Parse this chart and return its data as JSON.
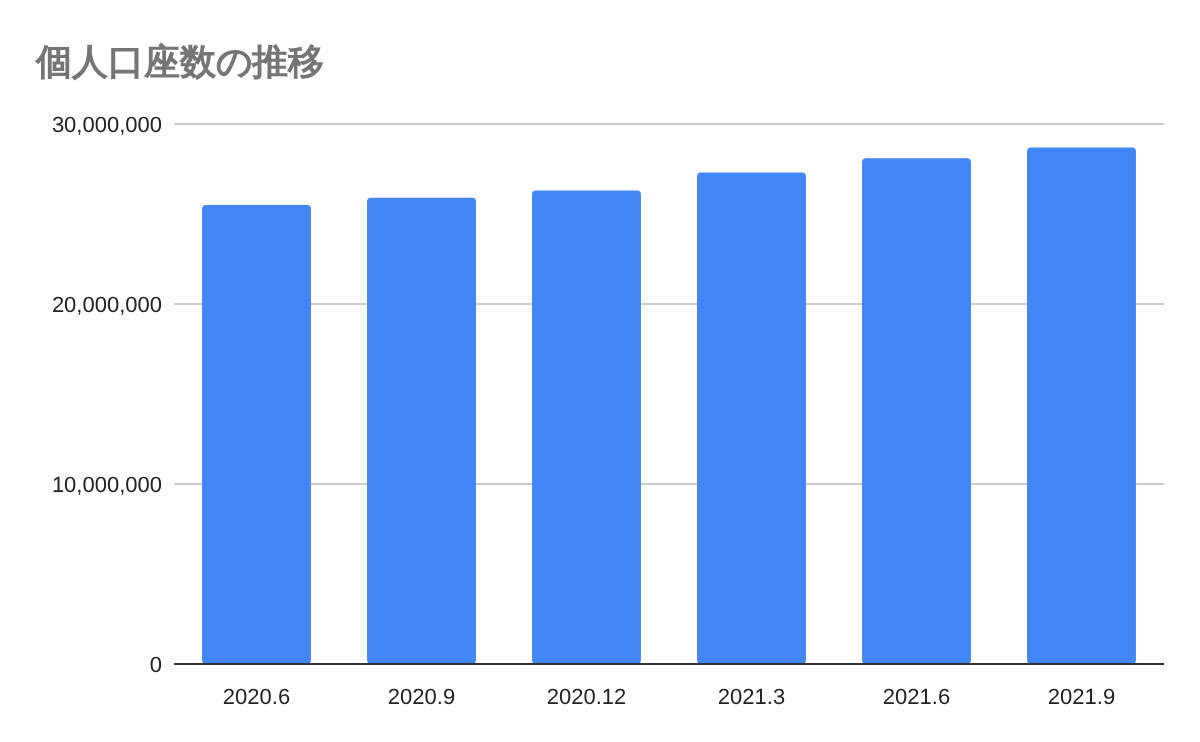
{
  "chart_data": {
    "type": "bar",
    "title": "個人口座数の推移",
    "categories": [
      "2020.6",
      "2020.9",
      "2020.12",
      "2021.3",
      "2021.6",
      "2021.9"
    ],
    "values": [
      25500000,
      25900000,
      26300000,
      27300000,
      28100000,
      28700000
    ],
    "color": "#4285f4",
    "ylim": [
      0,
      30000000
    ],
    "yticks": [
      {
        "value": 0,
        "label": "0"
      },
      {
        "value": 10000000,
        "label": "10,000,000"
      },
      {
        "value": 20000000,
        "label": "20,000,000"
      },
      {
        "value": 30000000,
        "label": "30,000,000"
      }
    ],
    "grid": "y"
  }
}
